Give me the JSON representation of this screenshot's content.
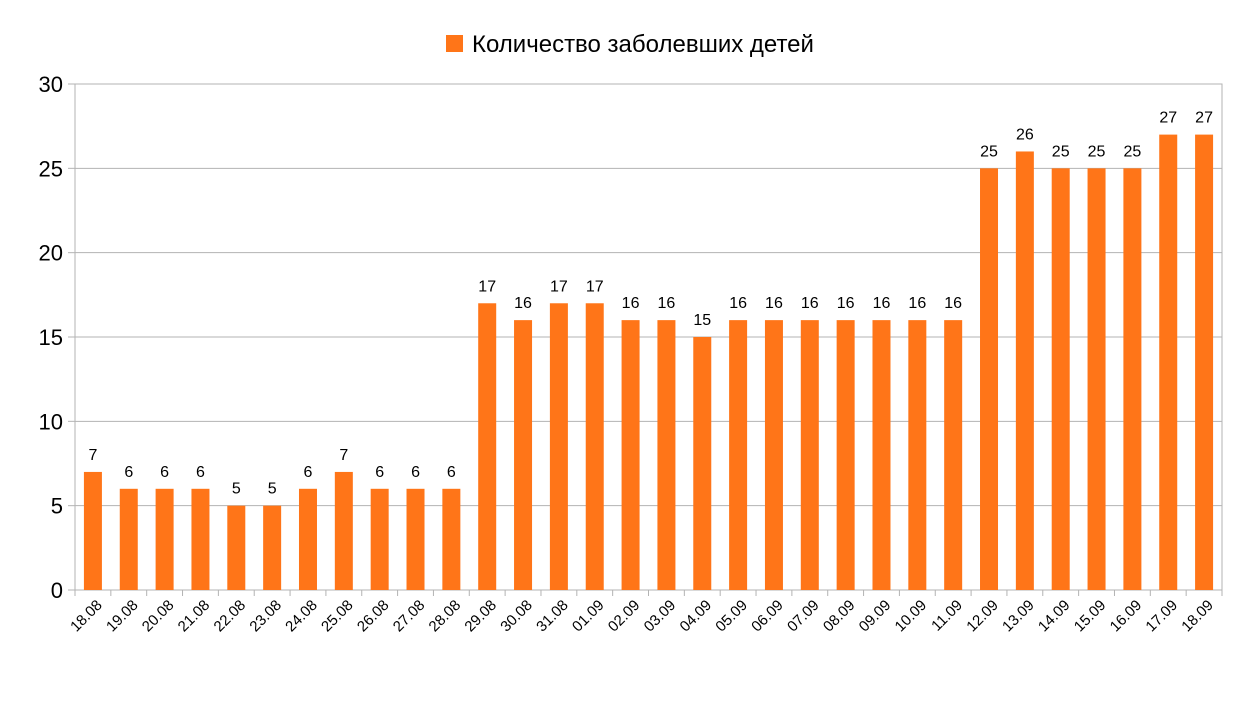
{
  "chart_data": {
    "type": "bar",
    "categories": [
      "18.08",
      "19.08",
      "20.08",
      "21.08",
      "22.08",
      "23.08",
      "24.08",
      "25.08",
      "26.08",
      "27.08",
      "28.08",
      "29.08",
      "30.08",
      "31.08",
      "01.09",
      "02.09",
      "03.09",
      "04.09",
      "05.09",
      "06.09",
      "07.09",
      "08.09",
      "09.09",
      "10.09",
      "11.09",
      "12.09",
      "13.09",
      "14.09",
      "15.09",
      "16.09",
      "17.09",
      "18.09"
    ],
    "series": [
      {
        "name": "Количество заболевших детей",
        "values": [
          7,
          6,
          6,
          6,
          5,
          5,
          6,
          7,
          6,
          6,
          6,
          17,
          16,
          17,
          17,
          16,
          16,
          15,
          16,
          16,
          16,
          16,
          16,
          16,
          16,
          25,
          26,
          25,
          25,
          25,
          27,
          27
        ],
        "color": "#ff7518"
      }
    ],
    "ylim": [
      0,
      30
    ],
    "yticks": [
      0,
      5,
      10,
      15,
      20,
      25,
      30
    ],
    "grid": true,
    "legend_position": "top-center",
    "data_labels": true
  }
}
